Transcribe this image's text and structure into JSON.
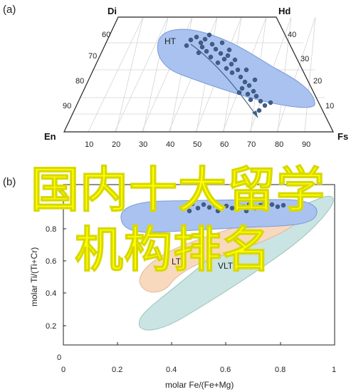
{
  "panel_a": {
    "label": "(a)",
    "apex_top": "Di",
    "apex_top_right": "Hd",
    "apex_left": "En",
    "apex_right": "Fs",
    "left_ticks": [
      "60",
      "70",
      "80",
      "90"
    ],
    "right_ticks": [
      "40",
      "30",
      "20",
      "10"
    ],
    "bottom_ticks": [
      "10",
      "20",
      "30",
      "40",
      "50",
      "60",
      "70",
      "80",
      "90"
    ],
    "field_label": "HT"
  },
  "panel_b": {
    "label": "(b)",
    "y_axis_title": "molar Ti/(Ti+Cr)",
    "x_axis_title": "molar Fe/(Fe+Mg)",
    "y_ticks": [
      "0.8",
      "0.6",
      "0.4",
      "0.2",
      "0"
    ],
    "x_ticks": [
      "0",
      "0.2",
      "0.4",
      "0.6",
      "0.8",
      "1"
    ],
    "field_labels": [
      "LT",
      "VLT"
    ],
    "field_colors": {
      "HT": "#a9c2f0",
      "LT": "#f8d9bd",
      "VLT": "#c9e4e2"
    },
    "point_color": "#3e5f8a"
  },
  "overlay": {
    "line1": "国内十大留学",
    "line2": "机构排名",
    "color": "#ffff00"
  }
}
